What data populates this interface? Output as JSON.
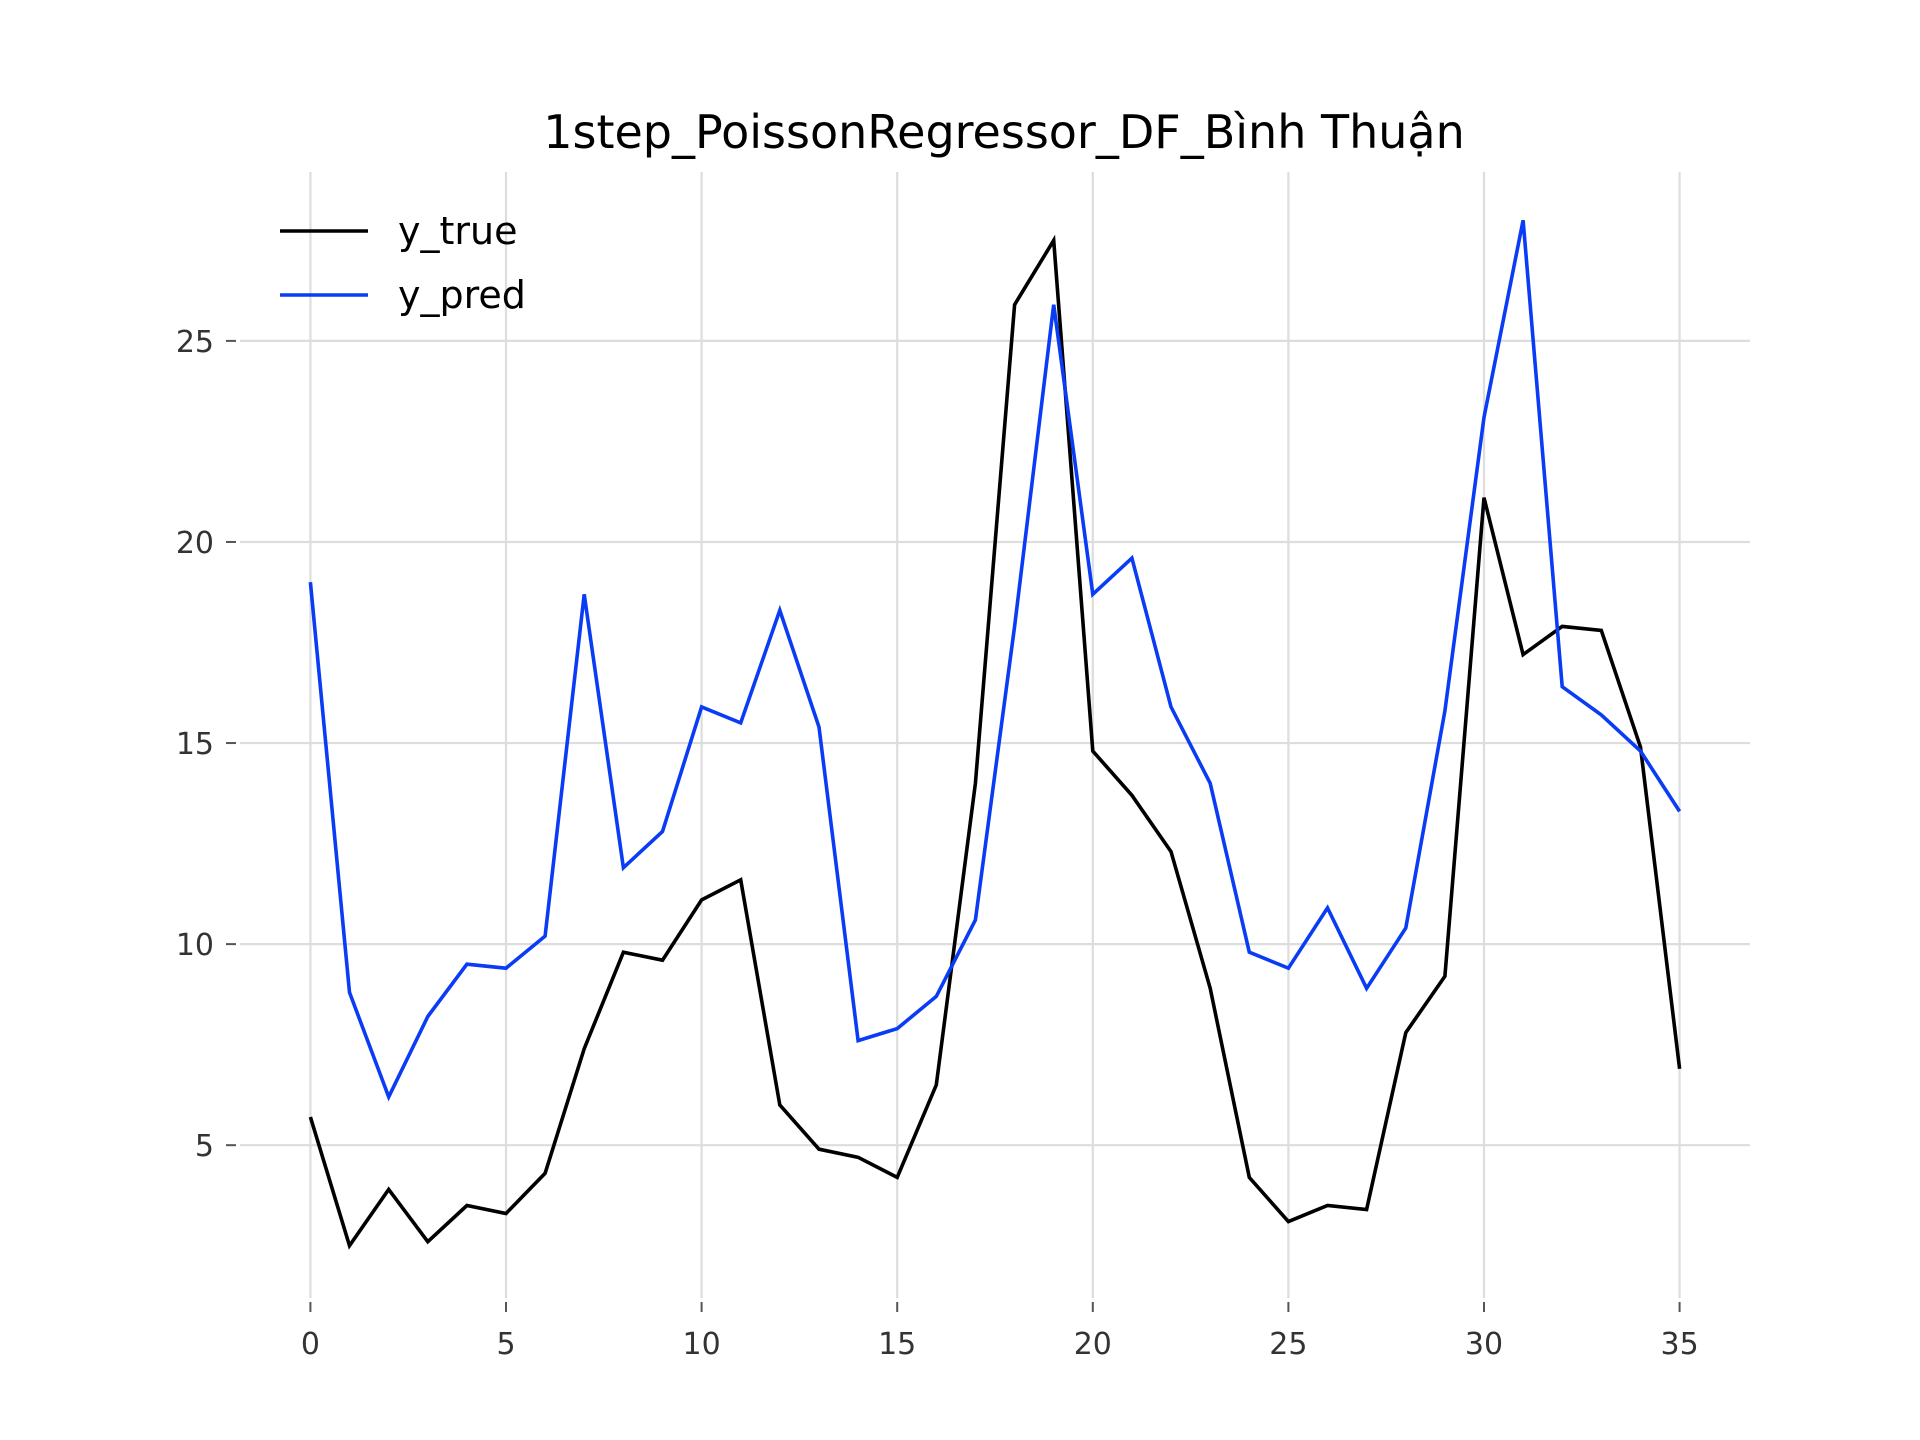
{
  "chart_data": {
    "type": "line",
    "title": "1step_PoissonRegressor_DF_Bình Thuận",
    "xlabel": "",
    "ylabel": "",
    "x": [
      0,
      1,
      2,
      3,
      4,
      5,
      6,
      7,
      8,
      9,
      10,
      11,
      12,
      13,
      14,
      15,
      16,
      17,
      18,
      19,
      20,
      21,
      22,
      23,
      24,
      25,
      26,
      27,
      28,
      29,
      30,
      31,
      32,
      33,
      34,
      35
    ],
    "xticks": [
      0,
      5,
      10,
      15,
      20,
      25,
      30,
      35
    ],
    "yticks": [
      5,
      10,
      15,
      20,
      25
    ],
    "xlim": [
      -1.8,
      36.8
    ],
    "ylim": [
      1.2,
      29.2
    ],
    "grid": true,
    "legend_position": "top-left",
    "series": [
      {
        "name": "y_true",
        "color": "#000000",
        "values": [
          5.7,
          2.5,
          3.9,
          2.6,
          3.5,
          3.3,
          4.3,
          7.4,
          9.8,
          9.6,
          11.1,
          11.6,
          6.0,
          4.9,
          4.7,
          4.2,
          6.5,
          14.0,
          25.9,
          27.5,
          14.8,
          13.7,
          12.3,
          8.9,
          4.2,
          3.1,
          3.5,
          3.4,
          7.8,
          9.2,
          21.1,
          17.2,
          17.9,
          17.8,
          14.9,
          6.9
        ]
      },
      {
        "name": "y_pred",
        "color": "#0a3cf5",
        "values": [
          19.0,
          8.8,
          6.2,
          8.2,
          9.5,
          9.4,
          10.2,
          18.7,
          11.9,
          12.8,
          15.9,
          15.5,
          18.3,
          15.4,
          7.6,
          7.9,
          8.7,
          10.6,
          17.9,
          25.9,
          18.7,
          19.6,
          15.9,
          14.0,
          9.8,
          9.4,
          10.9,
          8.9,
          10.4,
          15.8,
          23.1,
          28.0,
          16.4,
          15.7,
          14.8,
          13.3
        ]
      }
    ]
  }
}
